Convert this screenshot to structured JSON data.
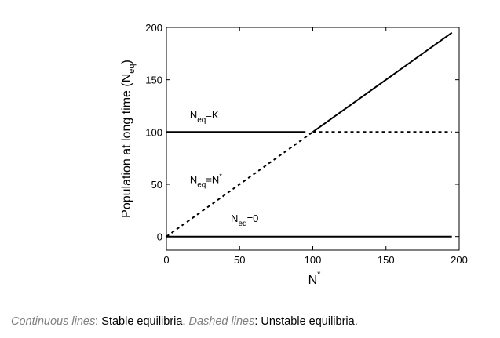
{
  "chart_data": {
    "type": "line",
    "title": "",
    "xlabel": {
      "base": "N",
      "sup": "*"
    },
    "ylabel": {
      "main": "Population at long time (N",
      "sub": "eq",
      "close": ")"
    },
    "xlim": [
      0,
      200
    ],
    "ylim": [
      -13,
      200
    ],
    "xticks": [
      0,
      50,
      100,
      150,
      200
    ],
    "yticks": [
      0,
      50,
      100,
      150,
      200
    ],
    "grid": false,
    "series": [
      {
        "style": "solid",
        "points": [
          [
            0,
            100
          ],
          [
            95,
            100
          ]
        ]
      },
      {
        "style": "solid",
        "points": [
          [
            100,
            100
          ],
          [
            195,
            195
          ]
        ]
      },
      {
        "style": "dashed",
        "points": [
          [
            0,
            0
          ],
          [
            100,
            100
          ]
        ]
      },
      {
        "style": "dashed",
        "points": [
          [
            100,
            100
          ],
          [
            195,
            100
          ]
        ]
      },
      {
        "style": "solid",
        "points": [
          [
            0,
            0
          ],
          [
            195,
            0
          ]
        ]
      }
    ],
    "annotations": [
      {
        "base": "N",
        "sub": "eq",
        "rest": "=K",
        "sup": "",
        "x": 16,
        "y": 113
      },
      {
        "base": "N",
        "sub": "eq",
        "rest": "=N",
        "sup": "*",
        "x": 16,
        "y": 51
      },
      {
        "base": "N",
        "sub": "eq",
        "rest": "=0",
        "sup": "",
        "x": 44,
        "y": 14
      }
    ]
  },
  "caption": {
    "part1_italic": "Continuous lines",
    "part1": ": Stable equilibria.  ",
    "part2_italic": "Dashed lines",
    "part2": ": Unstable equilibria."
  }
}
